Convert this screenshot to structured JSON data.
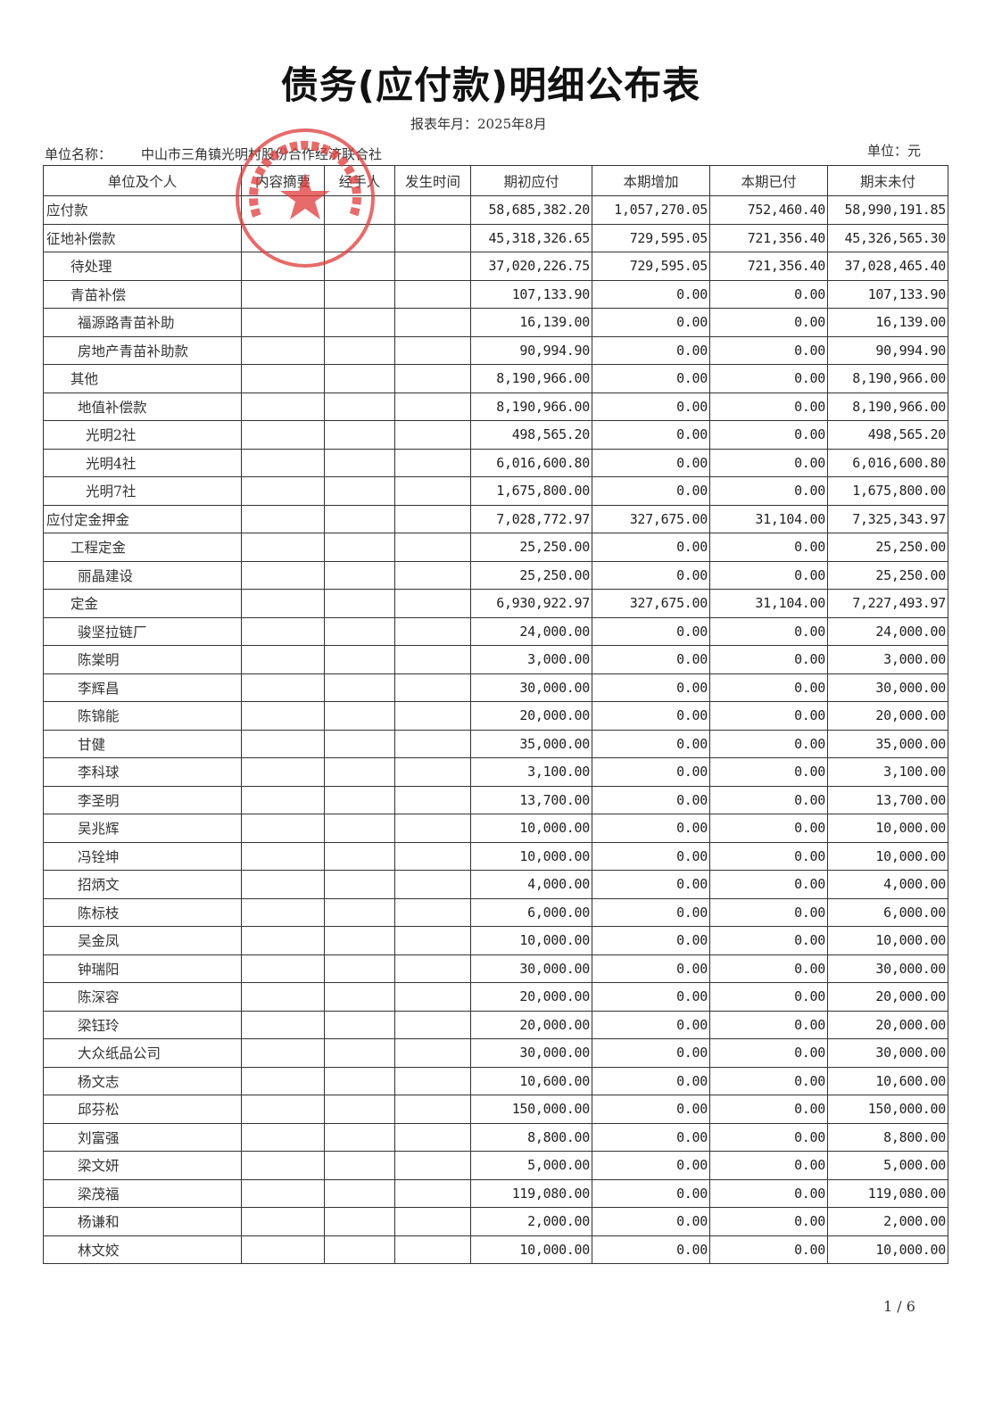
{
  "title": "债务(应付款)明细公布表",
  "period": "报表年月：2025年8月",
  "unit_name_label": "单位名称：",
  "unit_name": "中山市三角镇光明村股份合作经济联合社",
  "unit": "单位：元",
  "stamp_text": "中山市三角镇光明村股份合作经济联合社",
  "stamp_color": "#e03a3a",
  "columns": [
    "单位及个人",
    "内容摘要",
    "经手人",
    "发生时间",
    "期初应付",
    "本期增加",
    "本期已付",
    "期末未付"
  ],
  "rows": [
    {
      "name": "应付款",
      "level": 0,
      "opening": "58,685,382.20",
      "increase": "1,057,270.05",
      "paid": "752,460.40",
      "closing": "58,990,191.85"
    },
    {
      "name": "征地补偿款",
      "level": 0,
      "opening": "45,318,326.65",
      "increase": "729,595.05",
      "paid": "721,356.40",
      "closing": "45,326,565.30"
    },
    {
      "name": "待处理",
      "level": 1,
      "opening": "37,020,226.75",
      "increase": "729,595.05",
      "paid": "721,356.40",
      "closing": "37,028,465.40"
    },
    {
      "name": "青苗补偿",
      "level": 1,
      "opening": "107,133.90",
      "increase": "0.00",
      "paid": "0.00",
      "closing": "107,133.90"
    },
    {
      "name": "福源路青苗补助",
      "level": 2,
      "opening": "16,139.00",
      "increase": "0.00",
      "paid": "0.00",
      "closing": "16,139.00"
    },
    {
      "name": "房地产青苗补助款",
      "level": 2,
      "opening": "90,994.90",
      "increase": "0.00",
      "paid": "0.00",
      "closing": "90,994.90"
    },
    {
      "name": "其他",
      "level": 1,
      "opening": "8,190,966.00",
      "increase": "0.00",
      "paid": "0.00",
      "closing": "8,190,966.00"
    },
    {
      "name": "地值补偿款",
      "level": 2,
      "opening": "8,190,966.00",
      "increase": "0.00",
      "paid": "0.00",
      "closing": "8,190,966.00"
    },
    {
      "name": "光明2社",
      "level": 3,
      "opening": "498,565.20",
      "increase": "0.00",
      "paid": "0.00",
      "closing": "498,565.20"
    },
    {
      "name": "光明4社",
      "level": 3,
      "opening": "6,016,600.80",
      "increase": "0.00",
      "paid": "0.00",
      "closing": "6,016,600.80"
    },
    {
      "name": "光明7社",
      "level": 3,
      "opening": "1,675,800.00",
      "increase": "0.00",
      "paid": "0.00",
      "closing": "1,675,800.00"
    },
    {
      "name": "应付定金押金",
      "level": 0,
      "opening": "7,028,772.97",
      "increase": "327,675.00",
      "paid": "31,104.00",
      "closing": "7,325,343.97"
    },
    {
      "name": "工程定金",
      "level": 1,
      "opening": "25,250.00",
      "increase": "0.00",
      "paid": "0.00",
      "closing": "25,250.00"
    },
    {
      "name": "丽晶建设",
      "level": 2,
      "opening": "25,250.00",
      "increase": "0.00",
      "paid": "0.00",
      "closing": "25,250.00"
    },
    {
      "name": "定金",
      "level": 1,
      "opening": "6,930,922.97",
      "increase": "327,675.00",
      "paid": "31,104.00",
      "closing": "7,227,493.97"
    },
    {
      "name": "骏坚拉链厂",
      "level": 2,
      "opening": "24,000.00",
      "increase": "0.00",
      "paid": "0.00",
      "closing": "24,000.00"
    },
    {
      "name": "陈棠明",
      "level": 2,
      "opening": "3,000.00",
      "increase": "0.00",
      "paid": "0.00",
      "closing": "3,000.00"
    },
    {
      "name": "李辉昌",
      "level": 2,
      "opening": "30,000.00",
      "increase": "0.00",
      "paid": "0.00",
      "closing": "30,000.00"
    },
    {
      "name": "陈锦能",
      "level": 2,
      "opening": "20,000.00",
      "increase": "0.00",
      "paid": "0.00",
      "closing": "20,000.00"
    },
    {
      "name": "甘健",
      "level": 2,
      "opening": "35,000.00",
      "increase": "0.00",
      "paid": "0.00",
      "closing": "35,000.00"
    },
    {
      "name": "李科球",
      "level": 2,
      "opening": "3,100.00",
      "increase": "0.00",
      "paid": "0.00",
      "closing": "3,100.00"
    },
    {
      "name": "李圣明",
      "level": 2,
      "opening": "13,700.00",
      "increase": "0.00",
      "paid": "0.00",
      "closing": "13,700.00"
    },
    {
      "name": "吴兆辉",
      "level": 2,
      "opening": "10,000.00",
      "increase": "0.00",
      "paid": "0.00",
      "closing": "10,000.00"
    },
    {
      "name": "冯铨坤",
      "level": 2,
      "opening": "10,000.00",
      "increase": "0.00",
      "paid": "0.00",
      "closing": "10,000.00"
    },
    {
      "name": "招炳文",
      "level": 2,
      "opening": "4,000.00",
      "increase": "0.00",
      "paid": "0.00",
      "closing": "4,000.00"
    },
    {
      "name": "陈标枝",
      "level": 2,
      "opening": "6,000.00",
      "increase": "0.00",
      "paid": "0.00",
      "closing": "6,000.00"
    },
    {
      "name": "吴金凤",
      "level": 2,
      "opening": "10,000.00",
      "increase": "0.00",
      "paid": "0.00",
      "closing": "10,000.00"
    },
    {
      "name": "钟瑞阳",
      "level": 2,
      "opening": "30,000.00",
      "increase": "0.00",
      "paid": "0.00",
      "closing": "30,000.00"
    },
    {
      "name": "陈深容",
      "level": 2,
      "opening": "20,000.00",
      "increase": "0.00",
      "paid": "0.00",
      "closing": "20,000.00"
    },
    {
      "name": "梁钰玲",
      "level": 2,
      "opening": "20,000.00",
      "increase": "0.00",
      "paid": "0.00",
      "closing": "20,000.00"
    },
    {
      "name": "大众纸品公司",
      "level": 2,
      "opening": "30,000.00",
      "increase": "0.00",
      "paid": "0.00",
      "closing": "30,000.00"
    },
    {
      "name": "杨文志",
      "level": 2,
      "opening": "10,600.00",
      "increase": "0.00",
      "paid": "0.00",
      "closing": "10,600.00"
    },
    {
      "name": "邱芬松",
      "level": 2,
      "opening": "150,000.00",
      "increase": "0.00",
      "paid": "0.00",
      "closing": "150,000.00"
    },
    {
      "name": "刘富强",
      "level": 2,
      "opening": "8,800.00",
      "increase": "0.00",
      "paid": "0.00",
      "closing": "8,800.00"
    },
    {
      "name": "梁文妍",
      "level": 2,
      "opening": "5,000.00",
      "increase": "0.00",
      "paid": "0.00",
      "closing": "5,000.00"
    },
    {
      "name": "梁茂福",
      "level": 2,
      "opening": "119,080.00",
      "increase": "0.00",
      "paid": "0.00",
      "closing": "119,080.00"
    },
    {
      "name": "杨谦和",
      "level": 2,
      "opening": "2,000.00",
      "increase": "0.00",
      "paid": "0.00",
      "closing": "2,000.00"
    },
    {
      "name": "林文姣",
      "level": 2,
      "opening": "10,000.00",
      "increase": "0.00",
      "paid": "0.00",
      "closing": "10,000.00"
    }
  ],
  "page_number": "1 / 6"
}
